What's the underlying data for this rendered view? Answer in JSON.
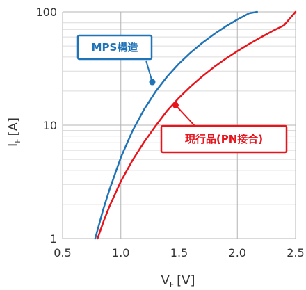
{
  "chart_data": {
    "type": "line",
    "xlabel": {
      "main": "V",
      "sub": "F",
      "unit": "[V]"
    },
    "ylabel": {
      "main": "I",
      "sub": "F",
      "unit": "[A]"
    },
    "xlim": [
      0.5,
      2.5
    ],
    "ylim": [
      1,
      100
    ],
    "y_scale": "log",
    "x_ticks": [
      {
        "value": 0.5,
        "label": "0.5"
      },
      {
        "value": 1.0,
        "label": "1.0"
      },
      {
        "value": 1.5,
        "label": "1.5"
      },
      {
        "value": 2.0,
        "label": "2.0"
      },
      {
        "value": 2.5,
        "label": "2.5"
      }
    ],
    "y_ticks": [
      {
        "value": 1,
        "label": "1"
      },
      {
        "value": 10,
        "label": "10"
      },
      {
        "value": 100,
        "label": "100"
      }
    ],
    "grid": true,
    "series": [
      {
        "name": "MPS構造",
        "color": "#1f73b7",
        "x": [
          0.78,
          0.85,
          0.9,
          1.0,
          1.1,
          1.2,
          1.3,
          1.4,
          1.5,
          1.6,
          1.7,
          1.8,
          1.9,
          2.0,
          2.1,
          2.17
        ],
        "y": [
          1.0,
          1.82,
          2.65,
          5.2,
          8.9,
          13.8,
          19.9,
          27.0,
          35.0,
          43.8,
          53.3,
          63.5,
          74.3,
          85.5,
          97.0,
          100
        ]
      },
      {
        "name": "現行品(PN接合)",
        "color": "#e8131b",
        "x": [
          0.8,
          0.85,
          0.9,
          1.0,
          1.1,
          1.2,
          1.3,
          1.4,
          1.5,
          1.6,
          1.7,
          1.8,
          1.9,
          2.0,
          2.1,
          2.2,
          2.3,
          2.4,
          2.5
        ],
        "y": [
          1.0,
          1.4,
          1.9,
          3.2,
          4.9,
          7.1,
          9.9,
          13.5,
          17.5,
          22.0,
          27.0,
          32.6,
          38.6,
          45.0,
          52.0,
          59.5,
          67.5,
          76.0,
          100
        ]
      }
    ],
    "annotations": [
      {
        "text": "MPS構造",
        "series": 0,
        "point": [
          1.27,
          24
        ]
      },
      {
        "text": "現行品(PN接合)",
        "series": 1,
        "point": [
          1.47,
          15
        ]
      }
    ]
  }
}
